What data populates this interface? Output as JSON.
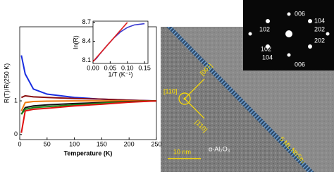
{
  "chart_data": [
    {
      "type": "line",
      "x": [
        3,
        10,
        25,
        50,
        100,
        150,
        200,
        250
      ],
      "xlabel": "Temperature (K)",
      "ylabel": "R(T)/R(250 K)",
      "xlim": [
        0,
        250
      ],
      "xticks": [
        0,
        50,
        100,
        150,
        200,
        250
      ],
      "ylim": [
        -0.15,
        3.2
      ],
      "yticks": [
        0,
        1
      ],
      "series": [
        {
          "color": "#1a2ee0",
          "values": [
            2.35,
            1.8,
            1.35,
            1.2,
            1.1,
            1.05,
            1.02,
            1
          ]
        },
        {
          "color": "#8b1010",
          "values": [
            1.1,
            1.15,
            1.12,
            1.1,
            1.07,
            1.05,
            1.02,
            1
          ]
        },
        {
          "color": "#f07a10",
          "values": [
            0.7,
            0.95,
            0.98,
            0.99,
            1.0,
            1.0,
            1.0,
            1
          ]
        },
        {
          "color": "#111111",
          "values": [
            0.6,
            0.8,
            0.85,
            0.88,
            0.92,
            0.95,
            0.98,
            1
          ]
        },
        {
          "color": "#1a8a1a",
          "values": [
            0.6,
            0.75,
            0.8,
            0.83,
            0.88,
            0.93,
            0.97,
            1
          ]
        },
        {
          "color": "#e01010",
          "values": [
            0.05,
            0.7,
            0.75,
            0.78,
            0.85,
            0.9,
            0.96,
            1
          ]
        }
      ]
    },
    {
      "type": "line",
      "xlabel": "1/T (K⁻¹)",
      "ylabel": "ln(R)",
      "xlim": [
        0,
        0.16
      ],
      "xticks": [
        {
          "value": 0,
          "label": "0.00"
        },
        {
          "value": 0.05,
          "label": "0.05"
        },
        {
          "value": 0.1,
          "label": "0.10"
        },
        {
          "value": 0.15,
          "label": "0.15"
        }
      ],
      "ylim": [
        8.05,
        8.72
      ],
      "yticks": [
        8.1,
        8.4,
        8.7
      ],
      "series": [
        {
          "color": "#3a3ad0",
          "x": [
            0.004,
            0.01,
            0.02,
            0.04,
            0.06,
            0.08,
            0.1,
            0.12,
            0.15
          ],
          "values": [
            8.1,
            8.13,
            8.2,
            8.33,
            8.45,
            8.55,
            8.62,
            8.66,
            8.68
          ]
        },
        {
          "color": "#e02020",
          "x": [
            0.0,
            0.1
          ],
          "values": [
            8.08,
            8.7
          ]
        }
      ]
    }
  ],
  "image": {
    "labels": [
      "[110]",
      "[001]",
      "[1̄10]",
      "10 nm",
      "α-Al₂O₃",
      "5 ML NbSe₂"
    ],
    "diffraction": [
      "006",
      "104",
      "102",
      "202",
      "102",
      "202",
      "104",
      "006"
    ]
  }
}
